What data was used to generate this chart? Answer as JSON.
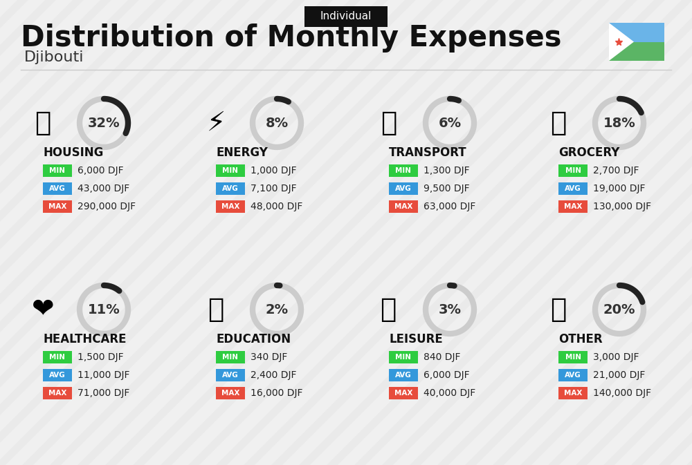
{
  "title": "Distribution of Monthly Expenses",
  "subtitle": "Djibouti",
  "tag": "Individual",
  "bg_color": "#f0f0f0",
  "categories": [
    {
      "name": "HOUSING",
      "percent": 32,
      "min_val": "6,000 DJF",
      "avg_val": "43,000 DJF",
      "max_val": "290,000 DJF",
      "icon_emoji": "🏢",
      "row": 0,
      "col": 0
    },
    {
      "name": "ENERGY",
      "percent": 8,
      "min_val": "1,000 DJF",
      "avg_val": "7,100 DJF",
      "max_val": "48,000 DJF",
      "icon_emoji": "⚡",
      "row": 0,
      "col": 1
    },
    {
      "name": "TRANSPORT",
      "percent": 6,
      "min_val": "1,300 DJF",
      "avg_val": "9,500 DJF",
      "max_val": "63,000 DJF",
      "icon_emoji": "🚌",
      "row": 0,
      "col": 2
    },
    {
      "name": "GROCERY",
      "percent": 18,
      "min_val": "2,700 DJF",
      "avg_val": "19,000 DJF",
      "max_val": "130,000 DJF",
      "icon_emoji": "🛒",
      "row": 0,
      "col": 3
    },
    {
      "name": "HEALTHCARE",
      "percent": 11,
      "min_val": "1,500 DJF",
      "avg_val": "11,000 DJF",
      "max_val": "71,000 DJF",
      "icon_emoji": "❤️",
      "row": 1,
      "col": 0
    },
    {
      "name": "EDUCATION",
      "percent": 2,
      "min_val": "340 DJF",
      "avg_val": "2,400 DJF",
      "max_val": "16,000 DJF",
      "icon_emoji": "🎓",
      "row": 1,
      "col": 1
    },
    {
      "name": "LEISURE",
      "percent": 3,
      "min_val": "840 DJF",
      "avg_val": "6,000 DJF",
      "max_val": "40,000 DJF",
      "icon_emoji": "🛍️",
      "row": 1,
      "col": 2
    },
    {
      "name": "OTHER",
      "percent": 20,
      "min_val": "3,000 DJF",
      "avg_val": "21,000 DJF",
      "max_val": "140,000 DJF",
      "icon_emoji": "💰",
      "row": 1,
      "col": 3
    }
  ],
  "color_min": "#2ecc40",
  "color_avg": "#3498db",
  "color_max": "#e74c3c",
  "label_color": "#ffffff",
  "value_color": "#222222",
  "cat_color": "#111111",
  "arc_color_filled": "#222222",
  "arc_color_empty": "#cccccc"
}
